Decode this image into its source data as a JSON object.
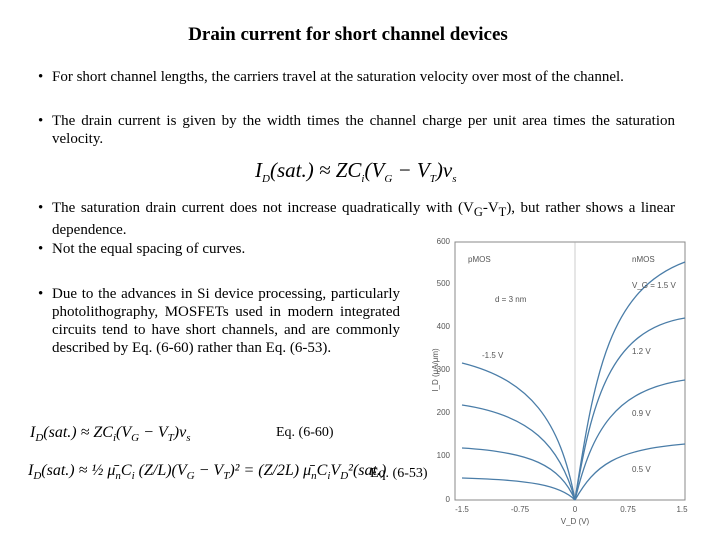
{
  "title": "Drain current for short channel devices",
  "bullets": [
    [
      "For short channel lengths, the carriers travel at the saturation velocity over most of the channel."
    ],
    [
      "The drain current is given by the width times the channel charge per unit area times the saturation velocity."
    ],
    [
      "The saturation drain current does not increase quadratically with (V",
      "G",
      "-V",
      "T",
      "), but rather shows a linear dependence."
    ],
    [
      "Not the equal spacing of curves."
    ],
    [
      "Due to the advances in Si device processing, particularly photolithography, MOSFETs used in modern integrated circuits tend to have short channels, and are commonly described by Eq. (6-60) rather than Eq. (6-53)."
    ]
  ],
  "equations": {
    "main": [
      "I",
      "D",
      "(sat.) ≈ ZC",
      "i",
      "(V",
      "G",
      " − V",
      "T",
      ")v",
      "s"
    ],
    "eq_6_60": [
      "I",
      "D",
      "(sat.) ≈ ZC",
      "i",
      "(V",
      "G",
      " − V",
      "T",
      ")v",
      "s"
    ],
    "eq_6_53": [
      "I",
      "D",
      "(sat.) ≈ ½ μ̄",
      "n",
      "C",
      "i",
      " (Z/L)(V",
      "G",
      " − V",
      "T",
      ")² = (Z/2L) μ̄",
      "n",
      "C",
      "i",
      "V",
      "D",
      "²(sat.)"
    ],
    "label_6_60": "Eq. (6-60)",
    "label_6_53": "Eq. (6-53)"
  },
  "figure": {
    "y_label": "I_D (μA/μm)",
    "x_label": "V_D (V)",
    "yticks": [
      "600",
      "500",
      "400",
      "300",
      "200",
      "100",
      "0"
    ],
    "xticks": [
      "-1.5",
      "-0.75",
      "0",
      "0.75",
      "1.5"
    ],
    "pmos": "pMOS",
    "nmos": "nMOS",
    "thickness": "d = 3 nm",
    "curve_labels": [
      "V_G = 1.5 V",
      "1.2 V",
      "0.9 V",
      "0.5 V",
      "-1.5 V"
    ]
  }
}
